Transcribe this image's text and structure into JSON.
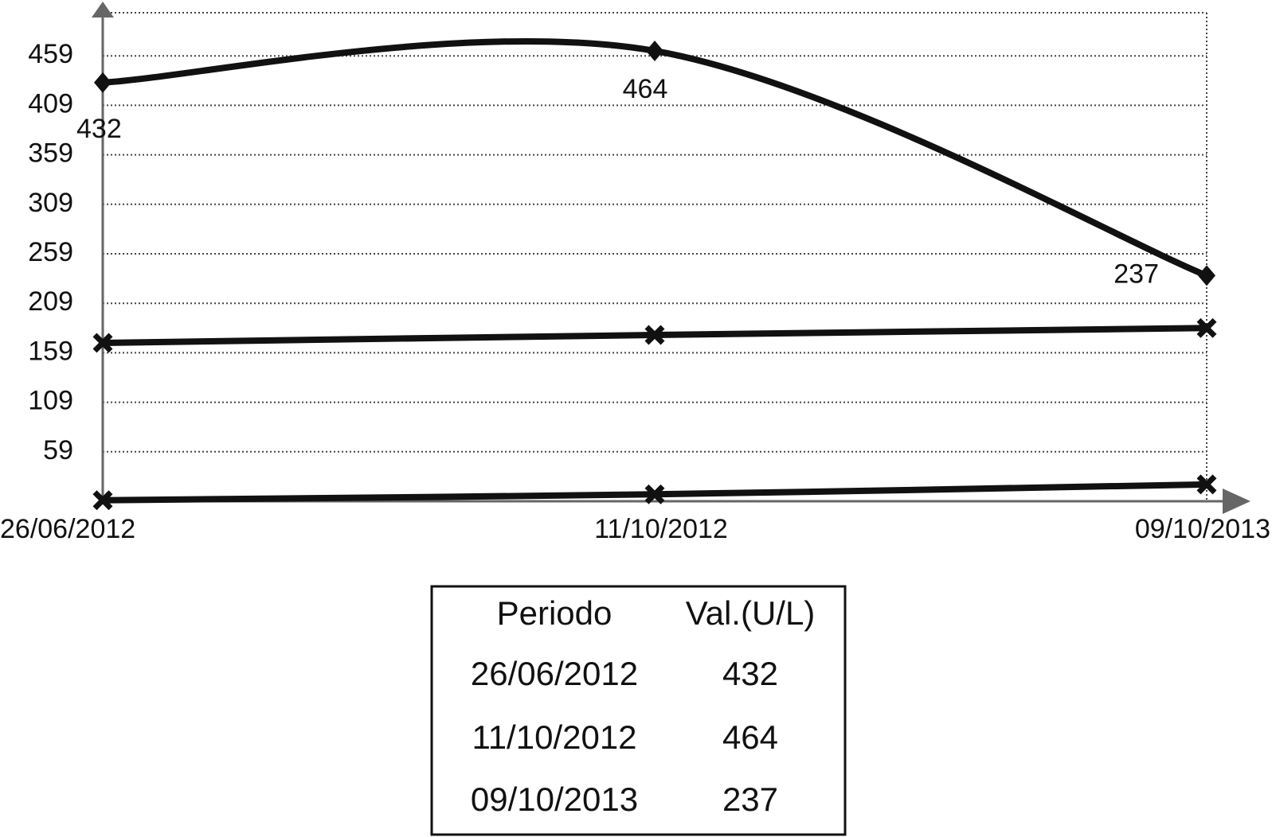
{
  "chart_data": {
    "type": "line",
    "categories": [
      "26/06/2012",
      "11/10/2012",
      "09/10/2013"
    ],
    "series": [
      {
        "color": "#111111",
        "marker": "diamond",
        "values": [
          432,
          464,
          237
        ],
        "labels": true
      },
      {
        "color": "#111111",
        "marker": "cross",
        "values": [
          169,
          177,
          184
        ]
      },
      {
        "color": "#111111",
        "marker": "cross",
        "values": [
          10,
          16,
          26
        ]
      }
    ],
    "ylim": [
      9,
      509
    ],
    "yticks": [
      59,
      109,
      159,
      209,
      259,
      309,
      359,
      409,
      459
    ],
    "grid": true
  },
  "table": {
    "header": [
      "Periodo",
      "Val.(U/L)"
    ],
    "rows": [
      [
        "26/06/2012",
        "432"
      ],
      [
        "11/10/2012",
        "464"
      ],
      [
        "09/10/2013",
        "237"
      ]
    ]
  }
}
